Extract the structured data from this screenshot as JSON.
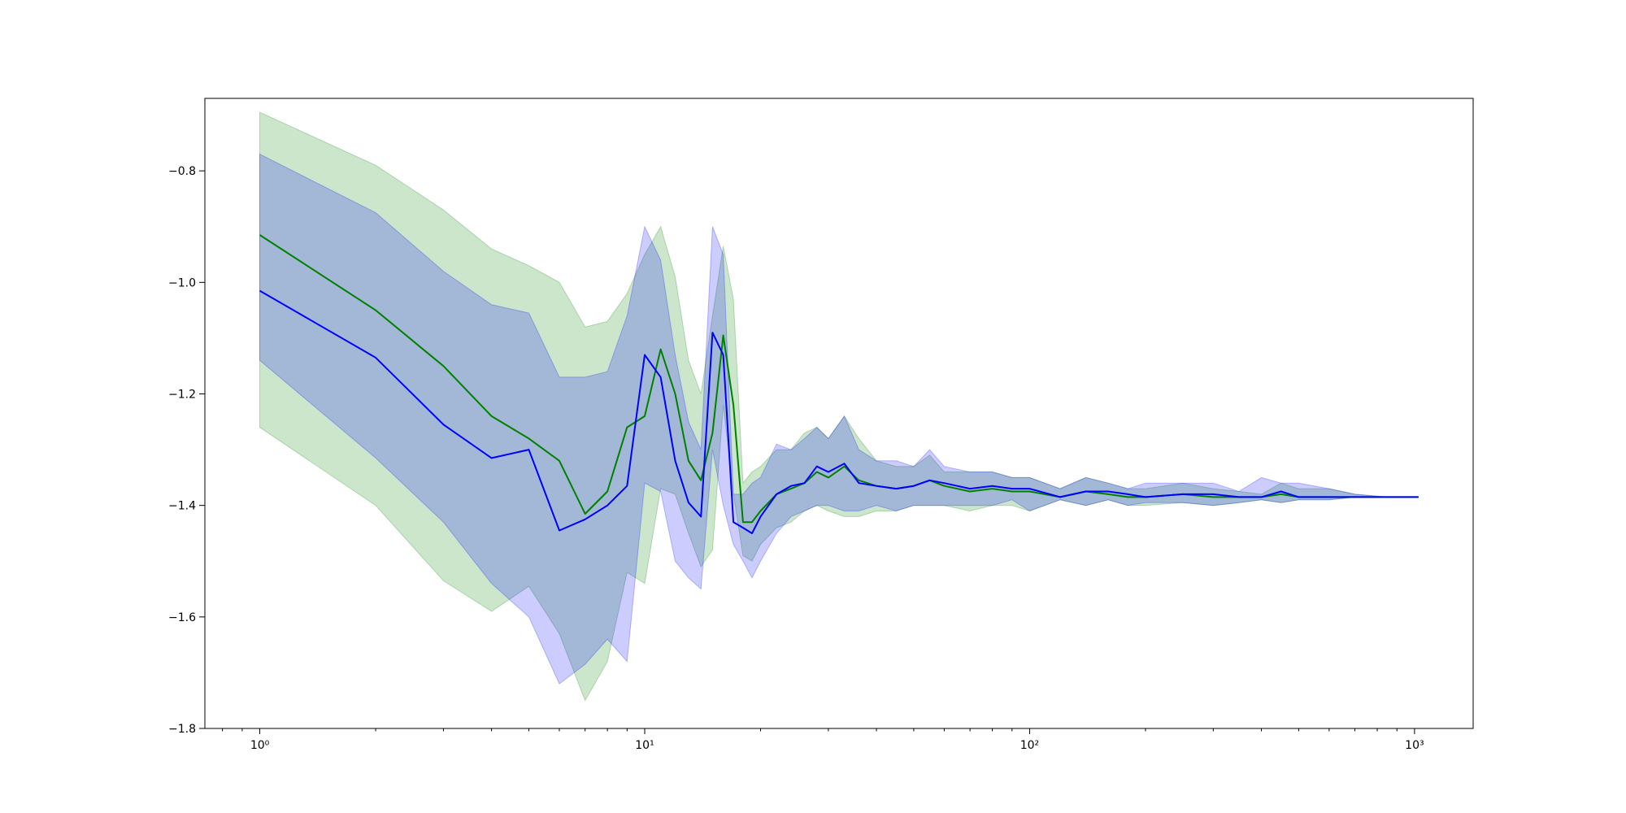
{
  "chart_data": {
    "type": "line",
    "title": "",
    "xlabel": "",
    "ylabel": "",
    "xscale": "log",
    "xlim": [
      0.72,
      1420
    ],
    "ylim": [
      -1.8,
      -0.67
    ],
    "grid": false,
    "legend": "none",
    "x_ticks": [
      {
        "value": 1,
        "label": "10⁰"
      },
      {
        "value": 10,
        "label": "10¹"
      },
      {
        "value": 100,
        "label": "10²"
      },
      {
        "value": 1000,
        "label": "10³"
      }
    ],
    "y_ticks": [
      {
        "value": -0.8,
        "label": "−0.8"
      },
      {
        "value": -1.0,
        "label": "−1.0"
      },
      {
        "value": -1.2,
        "label": "−1.2"
      },
      {
        "value": -1.4,
        "label": "−1.4"
      },
      {
        "value": -1.6,
        "label": "−1.6"
      },
      {
        "value": -1.8,
        "label": "−1.8"
      }
    ],
    "series": [
      {
        "color": "#008000",
        "band_color": "#008000",
        "band_opacity": 0.2,
        "x": [
          1,
          2,
          3,
          4,
          5,
          6,
          7,
          8,
          9,
          10,
          11,
          12,
          13,
          14,
          15,
          16,
          17,
          18,
          19,
          20,
          22,
          24,
          26,
          28,
          30,
          33,
          36,
          40,
          45,
          50,
          55,
          60,
          70,
          80,
          90,
          100,
          120,
          140,
          160,
          180,
          200,
          250,
          300,
          350,
          400,
          450,
          500,
          600,
          700,
          850,
          1024
        ],
        "mean": [
          -0.915,
          -1.05,
          -1.15,
          -1.24,
          -1.28,
          -1.32,
          -1.415,
          -1.375,
          -1.26,
          -1.24,
          -1.12,
          -1.2,
          -1.32,
          -1.355,
          -1.27,
          -1.095,
          -1.22,
          -1.43,
          -1.43,
          -1.41,
          -1.38,
          -1.37,
          -1.36,
          -1.34,
          -1.35,
          -1.33,
          -1.355,
          -1.365,
          -1.37,
          -1.365,
          -1.355,
          -1.365,
          -1.375,
          -1.37,
          -1.375,
          -1.375,
          -1.385,
          -1.375,
          -1.38,
          -1.385,
          -1.385,
          -1.38,
          -1.385,
          -1.385,
          -1.385,
          -1.38,
          -1.385,
          -1.385,
          -1.385,
          -1.385,
          -1.385
        ],
        "lower": [
          -1.26,
          -1.4,
          -1.535,
          -1.59,
          -1.545,
          -1.63,
          -1.75,
          -1.68,
          -1.52,
          -1.54,
          -1.37,
          -1.38,
          -1.45,
          -1.51,
          -1.48,
          -1.22,
          -1.38,
          -1.49,
          -1.5,
          -1.47,
          -1.44,
          -1.43,
          -1.41,
          -1.4,
          -1.41,
          -1.42,
          -1.42,
          -1.41,
          -1.41,
          -1.4,
          -1.4,
          -1.4,
          -1.41,
          -1.4,
          -1.4,
          -1.41,
          -1.39,
          -1.4,
          -1.39,
          -1.4,
          -1.4,
          -1.395,
          -1.4,
          -1.395,
          -1.39,
          -1.395,
          -1.39,
          -1.39,
          -1.385,
          -1.385,
          -1.385
        ],
        "upper": [
          -0.695,
          -0.79,
          -0.87,
          -0.94,
          -0.97,
          -1.0,
          -1.08,
          -1.07,
          -1.02,
          -0.95,
          -0.9,
          -0.99,
          -1.14,
          -1.2,
          -1.06,
          -0.935,
          -1.03,
          -1.36,
          -1.34,
          -1.33,
          -1.3,
          -1.3,
          -1.27,
          -1.26,
          -1.28,
          -1.24,
          -1.28,
          -1.32,
          -1.33,
          -1.33,
          -1.31,
          -1.34,
          -1.34,
          -1.34,
          -1.35,
          -1.35,
          -1.37,
          -1.35,
          -1.36,
          -1.37,
          -1.37,
          -1.36,
          -1.37,
          -1.375,
          -1.38,
          -1.36,
          -1.37,
          -1.37,
          -1.38,
          -1.385,
          -1.385
        ]
      },
      {
        "color": "#0000ff",
        "band_color": "#0000ff",
        "band_opacity": 0.2,
        "x": [
          1,
          2,
          3,
          4,
          5,
          6,
          7,
          8,
          9,
          10,
          11,
          12,
          13,
          14,
          15,
          16,
          17,
          18,
          19,
          20,
          22,
          24,
          26,
          28,
          30,
          33,
          36,
          40,
          45,
          50,
          55,
          60,
          70,
          80,
          90,
          100,
          120,
          140,
          160,
          180,
          200,
          250,
          300,
          350,
          400,
          450,
          500,
          600,
          700,
          850,
          1024
        ],
        "mean": [
          -1.015,
          -1.135,
          -1.255,
          -1.315,
          -1.3,
          -1.445,
          -1.425,
          -1.4,
          -1.365,
          -1.13,
          -1.17,
          -1.32,
          -1.395,
          -1.42,
          -1.09,
          -1.13,
          -1.43,
          -1.44,
          -1.45,
          -1.42,
          -1.38,
          -1.365,
          -1.36,
          -1.33,
          -1.34,
          -1.325,
          -1.36,
          -1.365,
          -1.37,
          -1.365,
          -1.355,
          -1.36,
          -1.37,
          -1.365,
          -1.37,
          -1.37,
          -1.385,
          -1.375,
          -1.375,
          -1.38,
          -1.385,
          -1.38,
          -1.38,
          -1.385,
          -1.385,
          -1.375,
          -1.385,
          -1.385,
          -1.385,
          -1.385,
          -1.385
        ],
        "lower": [
          -1.14,
          -1.315,
          -1.43,
          -1.54,
          -1.6,
          -1.72,
          -1.685,
          -1.64,
          -1.68,
          -1.36,
          -1.375,
          -1.5,
          -1.53,
          -1.55,
          -1.3,
          -1.4,
          -1.47,
          -1.5,
          -1.53,
          -1.5,
          -1.45,
          -1.42,
          -1.41,
          -1.4,
          -1.4,
          -1.41,
          -1.41,
          -1.4,
          -1.41,
          -1.4,
          -1.4,
          -1.4,
          -1.4,
          -1.4,
          -1.39,
          -1.41,
          -1.39,
          -1.4,
          -1.39,
          -1.4,
          -1.395,
          -1.395,
          -1.4,
          -1.395,
          -1.39,
          -1.395,
          -1.39,
          -1.39,
          -1.385,
          -1.385,
          -1.385
        ],
        "upper": [
          -0.77,
          -0.875,
          -0.98,
          -1.04,
          -1.055,
          -1.17,
          -1.17,
          -1.16,
          -1.06,
          -0.9,
          -0.96,
          -1.13,
          -1.25,
          -1.3,
          -0.9,
          -0.95,
          -1.38,
          -1.38,
          -1.36,
          -1.35,
          -1.29,
          -1.3,
          -1.28,
          -1.26,
          -1.28,
          -1.24,
          -1.3,
          -1.32,
          -1.32,
          -1.33,
          -1.3,
          -1.33,
          -1.34,
          -1.34,
          -1.35,
          -1.35,
          -1.37,
          -1.35,
          -1.36,
          -1.37,
          -1.36,
          -1.36,
          -1.36,
          -1.375,
          -1.35,
          -1.36,
          -1.36,
          -1.37,
          -1.38,
          -1.385,
          -1.385
        ]
      }
    ]
  }
}
